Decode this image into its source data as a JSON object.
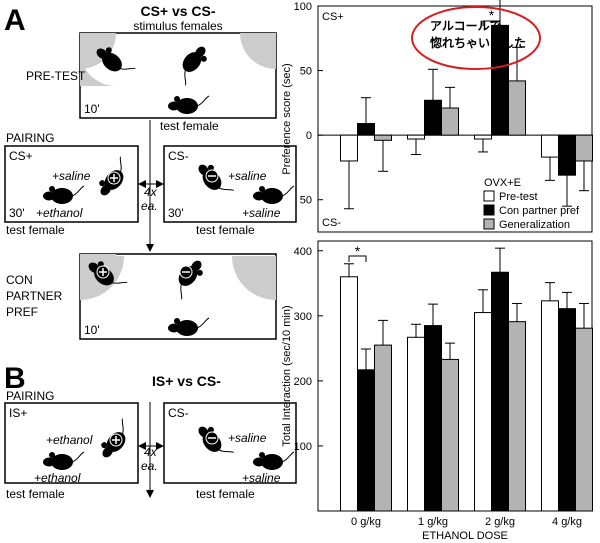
{
  "diagram": {
    "panel_a": "A",
    "a_title": "CS+ vs CS-",
    "a_subtitle": "stimulus females",
    "pretest": "PRE-TEST",
    "pretest_time": "10'",
    "pretest_female": "test female",
    "pairing": "PAIRING",
    "csplus": {
      "label": "CS+",
      "stim": "+saline",
      "test": "+ethanol",
      "time": "30'",
      "female": "test female"
    },
    "csminus": {
      "label": "CS-",
      "stim": "+saline",
      "test": "+saline",
      "time": "30'",
      "female": "test female"
    },
    "repeat": [
      "4x",
      "ea."
    ],
    "conpref": [
      "CON",
      "PARTNER",
      "PREF"
    ],
    "conpref_time": "10'",
    "panel_b": "B",
    "b_title": "IS+ vs CS-",
    "b_pairing": "PAIRING",
    "isplus": {
      "label": "IS+",
      "stim": "+ethanol",
      "test": "+ethanol",
      "female": "test female"
    },
    "b_csminus": {
      "label": "CS-",
      "stim": "+saline",
      "test": "+saline",
      "female": "test female"
    },
    "b_repeat": [
      "4x",
      "ea."
    ]
  },
  "chart_data": [
    {
      "type": "bar",
      "ylabel": "Preference score (sec)",
      "categories": [
        null,
        null,
        null,
        null
      ],
      "series": [
        {
          "name": "Pre-test",
          "color": "#ffffff",
          "values": [
            -20,
            -3,
            -3,
            -17
          ],
          "errors": [
            37,
            12,
            10,
            18
          ]
        },
        {
          "name": "Con partner pref",
          "color": "#000000",
          "values": [
            9,
            27,
            85,
            -31
          ],
          "errors": [
            20,
            24,
            20,
            24
          ]
        },
        {
          "name": "Generalization",
          "color": "#b3b3b3",
          "values": [
            -4,
            21,
            42,
            -20
          ],
          "errors": [
            24,
            16,
            26,
            23
          ]
        }
      ],
      "legend_title": "OVX+E",
      "ylim": [
        -75,
        100
      ],
      "yticks": [
        100,
        50,
        0,
        {
          "value": -50,
          "label": "50"
        }
      ],
      "annotations": [
        "CS+",
        "CS-",
        "*",
        "アルコールで",
        "惚れちゃいました"
      ]
    },
    {
      "type": "bar",
      "ylabel": "Total Interaction (sec/10 min)",
      "xlabel": "ETHANOL DOSE",
      "categories": [
        "0 g/kg",
        "1 g/kg",
        "2 g/kg",
        "4 g/kg"
      ],
      "series": [
        {
          "color": "#ffffff",
          "values": [
            360,
            267,
            305,
            323
          ],
          "errors": [
            20,
            20,
            35,
            28
          ]
        },
        {
          "color": "#000000",
          "values": [
            217,
            285,
            367,
            311
          ],
          "errors": [
            32,
            33,
            37,
            25
          ]
        },
        {
          "color": "#b3b3b3",
          "values": [
            255,
            233,
            291,
            281
          ],
          "errors": [
            38,
            25,
            28,
            38
          ]
        }
      ],
      "ylim": [
        0,
        415
      ],
      "yticks": [
        100,
        200,
        300,
        400
      ],
      "annotations": [
        "*"
      ]
    }
  ]
}
